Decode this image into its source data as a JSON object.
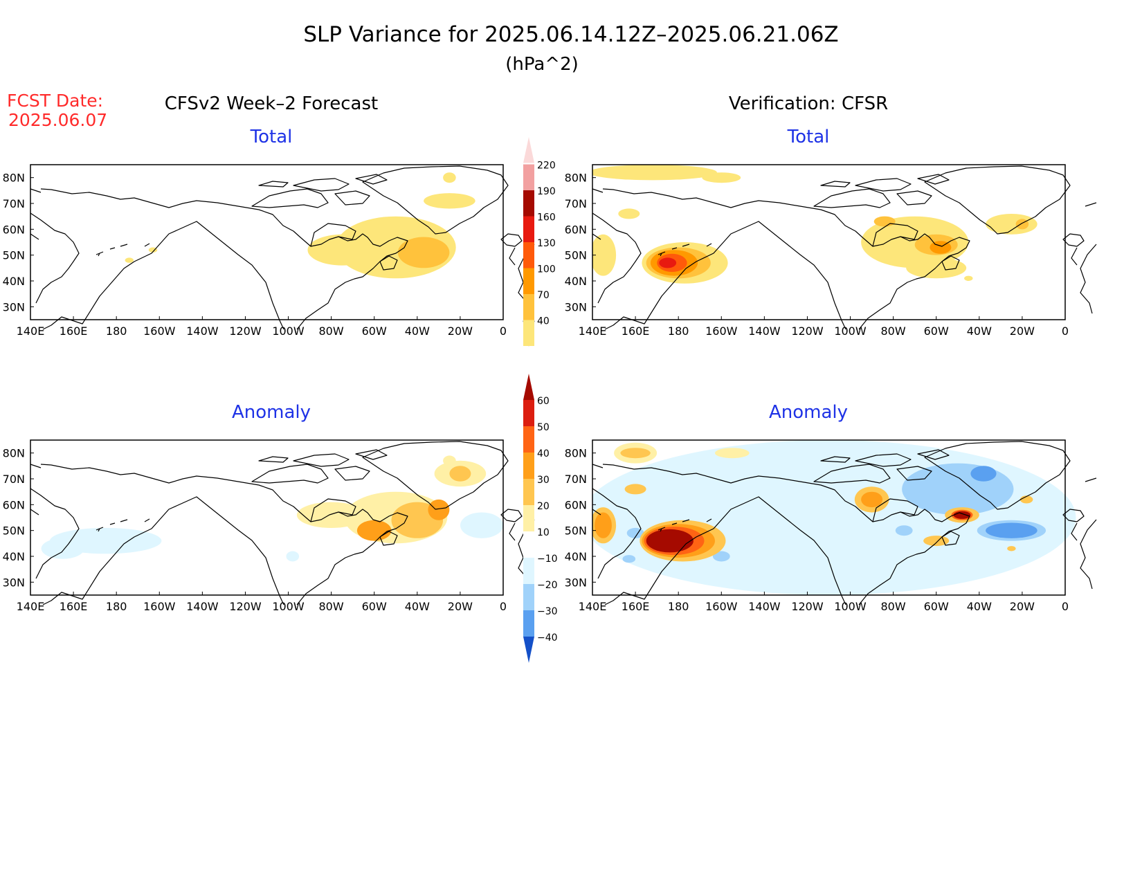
{
  "title": "SLP Variance for 2025.06.14.12Z–2025.06.21.06Z",
  "units": "(hPa^2)",
  "fcst_date_label": "FCST Date:",
  "fcst_date_value": "2025.06.07",
  "columns": {
    "left": "CFSv2 Week–2 Forecast",
    "right": "Verification: CFSR"
  },
  "panel_titles": {
    "total": "Total",
    "anomaly": "Anomaly"
  },
  "axes": {
    "lon_ticks": [
      "140E",
      "160E",
      "180",
      "160W",
      "140W",
      "120W",
      "100W",
      "80W",
      "60W",
      "40W",
      "20W",
      "0"
    ],
    "lat_ticks": [
      "80N",
      "70N",
      "60N",
      "50N",
      "40N",
      "30N"
    ],
    "lon_range_deg": [
      140,
      360
    ],
    "lat_range_deg": [
      25,
      85
    ]
  },
  "colorbars": {
    "total": {
      "labels": [
        "40",
        "70",
        "100",
        "130",
        "160",
        "190",
        "220"
      ],
      "colors": [
        "#fde67a",
        "#ffc23c",
        "#ff9900",
        "#ff5a0a",
        "#e81a10",
        "#a50a00",
        "#f2a0a0",
        "#fbd9d9"
      ]
    },
    "anomaly": {
      "labels": [
        "60",
        "50",
        "40",
        "30",
        "20",
        "10",
        "−10",
        "−20",
        "−30",
        "−40"
      ],
      "colors": [
        "#a50a00",
        "#dc1e10",
        "#ff6414",
        "#ff9f19",
        "#ffc650",
        "#fff0a6",
        "#ffffff",
        "#dff6ff",
        "#a0d2fa",
        "#5aa0f0",
        "#2878e6",
        "#1450c8"
      ]
    }
  },
  "panels": {
    "fcst_total": {
      "blobs": [
        {
          "lon": 285,
          "lat": 52,
          "rx": 16,
          "ry": 6,
          "level": 1
        },
        {
          "lon": 310,
          "lat": 53,
          "rx": 28,
          "ry": 12,
          "level": 1
        },
        {
          "lon": 335,
          "lat": 71,
          "rx": 12,
          "ry": 3,
          "level": 1
        },
        {
          "lon": 323,
          "lat": 51,
          "rx": 12,
          "ry": 6,
          "level": 2
        },
        {
          "lon": 335,
          "lat": 80,
          "rx": 3,
          "ry": 2,
          "level": 1
        },
        {
          "lon": 186,
          "lat": 48,
          "rx": 2,
          "ry": 1,
          "level": 1
        },
        {
          "lon": 197,
          "lat": 52,
          "rx": 2,
          "ry": 1,
          "level": 1
        }
      ]
    },
    "cfsr_total": {
      "blobs": [
        {
          "lon": 168,
          "lat": 82,
          "rx": 30,
          "ry": 3,
          "level": 1
        },
        {
          "lon": 145,
          "lat": 50,
          "rx": 6,
          "ry": 8,
          "level": 1
        },
        {
          "lon": 157,
          "lat": 66,
          "rx": 5,
          "ry": 2,
          "level": 1
        },
        {
          "lon": 183,
          "lat": 47,
          "rx": 20,
          "ry": 8,
          "level": 1
        },
        {
          "lon": 180,
          "lat": 47,
          "rx": 15,
          "ry": 6,
          "level": 2
        },
        {
          "lon": 178,
          "lat": 47,
          "rx": 11,
          "ry": 5,
          "level": 3
        },
        {
          "lon": 177,
          "lat": 47,
          "rx": 7,
          "ry": 3.5,
          "level": 4
        },
        {
          "lon": 175,
          "lat": 47,
          "rx": 4,
          "ry": 2,
          "level": 5
        },
        {
          "lon": 200,
          "lat": 80,
          "rx": 9,
          "ry": 2,
          "level": 1
        },
        {
          "lon": 290,
          "lat": 55,
          "rx": 25,
          "ry": 10,
          "level": 1
        },
        {
          "lon": 300,
          "lat": 45,
          "rx": 14,
          "ry": 4,
          "level": 1
        },
        {
          "lon": 300,
          "lat": 54,
          "rx": 10,
          "ry": 4,
          "level": 2
        },
        {
          "lon": 276,
          "lat": 63,
          "rx": 5,
          "ry": 2,
          "level": 2
        },
        {
          "lon": 302,
          "lat": 53,
          "rx": 5,
          "ry": 2.5,
          "level": 3
        },
        {
          "lon": 335,
          "lat": 62,
          "rx": 12,
          "ry": 4,
          "level": 1
        },
        {
          "lon": 340,
          "lat": 62,
          "rx": 3,
          "ry": 2,
          "level": 2
        },
        {
          "lon": 315,
          "lat": 41,
          "rx": 2,
          "ry": 1,
          "level": 1
        }
      ]
    },
    "fcst_anom": {
      "blobs": [
        {
          "lon": 280,
          "lat": 56,
          "rx": 16,
          "ry": 5,
          "level": 1
        },
        {
          "lon": 310,
          "lat": 55,
          "rx": 24,
          "ry": 10,
          "level": 1
        },
        {
          "lon": 320,
          "lat": 54,
          "rx": 12,
          "ry": 7,
          "level": 2
        },
        {
          "lon": 300,
          "lat": 50,
          "rx": 8,
          "ry": 4,
          "level": 3
        },
        {
          "lon": 330,
          "lat": 58,
          "rx": 5,
          "ry": 4,
          "level": 3
        },
        {
          "lon": 340,
          "lat": 72,
          "rx": 12,
          "ry": 5,
          "level": 1
        },
        {
          "lon": 340,
          "lat": 72,
          "rx": 5,
          "ry": 3,
          "level": 2
        },
        {
          "lon": 175,
          "lat": 46,
          "rx": 26,
          "ry": 5,
          "level": -1
        },
        {
          "lon": 155,
          "lat": 43,
          "rx": 10,
          "ry": 4,
          "level": -1
        },
        {
          "lon": 350,
          "lat": 52,
          "rx": 10,
          "ry": 5,
          "level": -1
        },
        {
          "lon": 262,
          "lat": 40,
          "rx": 3,
          "ry": 2,
          "level": -1
        },
        {
          "lon": 335,
          "lat": 77,
          "rx": 3,
          "ry": 2,
          "level": 1
        }
      ]
    },
    "cfsr_anom": {
      "blobs": [
        {
          "lon": 250,
          "lat": 55,
          "rx": 115,
          "ry": 30,
          "level": -1
        },
        {
          "lon": 310,
          "lat": 66,
          "rx": 26,
          "ry": 10,
          "level": -2
        },
        {
          "lon": 322,
          "lat": 72,
          "rx": 6,
          "ry": 3,
          "level": -3
        },
        {
          "lon": 335,
          "lat": 50,
          "rx": 16,
          "ry": 4,
          "level": -2
        },
        {
          "lon": 335,
          "lat": 50,
          "rx": 12,
          "ry": 3,
          "level": -3
        },
        {
          "lon": 285,
          "lat": 50,
          "rx": 4,
          "ry": 2,
          "level": -2
        },
        {
          "lon": 160,
          "lat": 49,
          "rx": 4,
          "ry": 2,
          "level": -2
        },
        {
          "lon": 157,
          "lat": 39,
          "rx": 3,
          "ry": 1.5,
          "level": -2
        },
        {
          "lon": 200,
          "lat": 40,
          "rx": 4,
          "ry": 2,
          "level": -2
        },
        {
          "lon": 160,
          "lat": 80,
          "rx": 10,
          "ry": 4,
          "level": 1
        },
        {
          "lon": 160,
          "lat": 80,
          "rx": 7,
          "ry": 2,
          "level": 2
        },
        {
          "lon": 205,
          "lat": 80,
          "rx": 8,
          "ry": 2,
          "level": 1
        },
        {
          "lon": 145,
          "lat": 52,
          "rx": 6,
          "ry": 7,
          "level": 2
        },
        {
          "lon": 145,
          "lat": 52,
          "rx": 4,
          "ry": 5,
          "level": 3
        },
        {
          "lon": 160,
          "lat": 66,
          "rx": 5,
          "ry": 2,
          "level": 2
        },
        {
          "lon": 182,
          "lat": 46,
          "rx": 20,
          "ry": 8,
          "level": 2
        },
        {
          "lon": 180,
          "lat": 46,
          "rx": 17,
          "ry": 6.5,
          "level": 3
        },
        {
          "lon": 178,
          "lat": 46,
          "rx": 14,
          "ry": 5.5,
          "level": 4
        },
        {
          "lon": 176,
          "lat": 46,
          "rx": 11,
          "ry": 4.5,
          "level": 5
        },
        {
          "lon": 270,
          "lat": 62,
          "rx": 8,
          "ry": 5,
          "level": 2
        },
        {
          "lon": 270,
          "lat": 62,
          "rx": 5,
          "ry": 3,
          "level": 3
        },
        {
          "lon": 312,
          "lat": 56,
          "rx": 8,
          "ry": 3,
          "level": 2
        },
        {
          "lon": 312,
          "lat": 56,
          "rx": 5,
          "ry": 2,
          "level": 4
        },
        {
          "lon": 312,
          "lat": 56,
          "rx": 4,
          "ry": 1.5,
          "level": 5
        },
        {
          "lon": 300,
          "lat": 46,
          "rx": 6,
          "ry": 2,
          "level": 2
        },
        {
          "lon": 342,
          "lat": 62,
          "rx": 3,
          "ry": 1.5,
          "level": 2
        },
        {
          "lon": 335,
          "lat": 43,
          "rx": 2,
          "ry": 1,
          "level": 2
        }
      ]
    }
  }
}
